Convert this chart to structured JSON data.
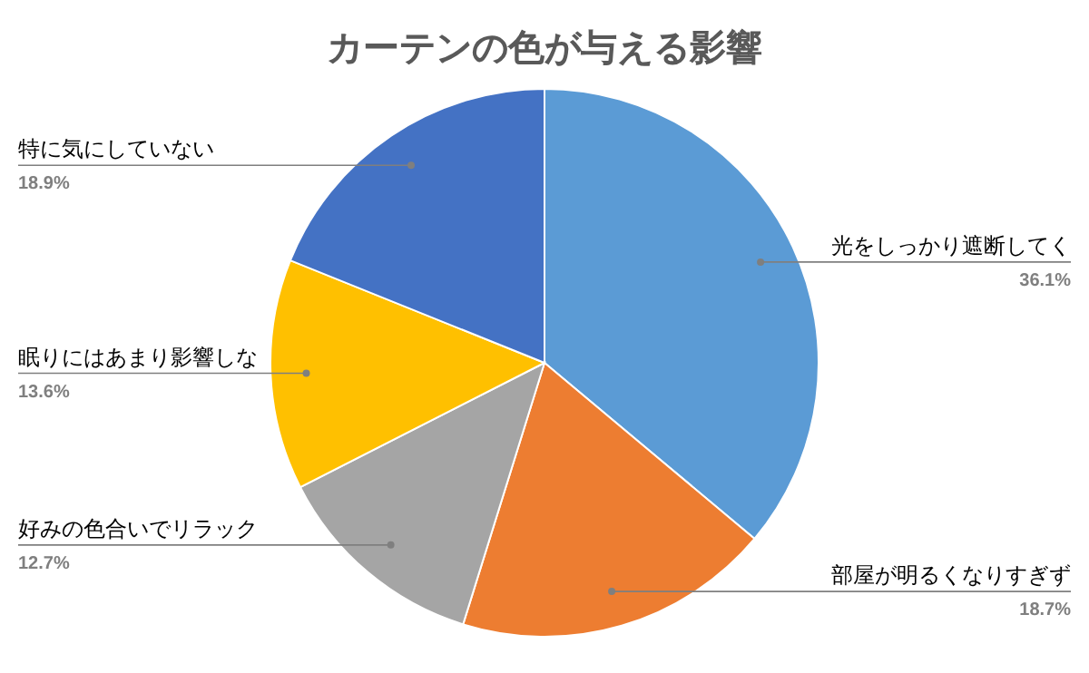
{
  "chart_data": {
    "type": "pie",
    "title": "カーテンの色が与える影響",
    "categories": [
      "光をしっかり遮断してく",
      "部屋が明るくなりすぎず",
      "好みの色合いでリラック",
      "眠りにはあまり影響しな",
      "特に気にしていない"
    ],
    "values": [
      36.1,
      18.7,
      12.7,
      13.6,
      18.9
    ],
    "value_labels": [
      "36.1%",
      "18.7%",
      "12.7%",
      "13.6%",
      "18.9%"
    ],
    "colors": [
      "#5b9bd5",
      "#ed7d31",
      "#a5a5a5",
      "#ffc000",
      "#4472c4"
    ]
  }
}
